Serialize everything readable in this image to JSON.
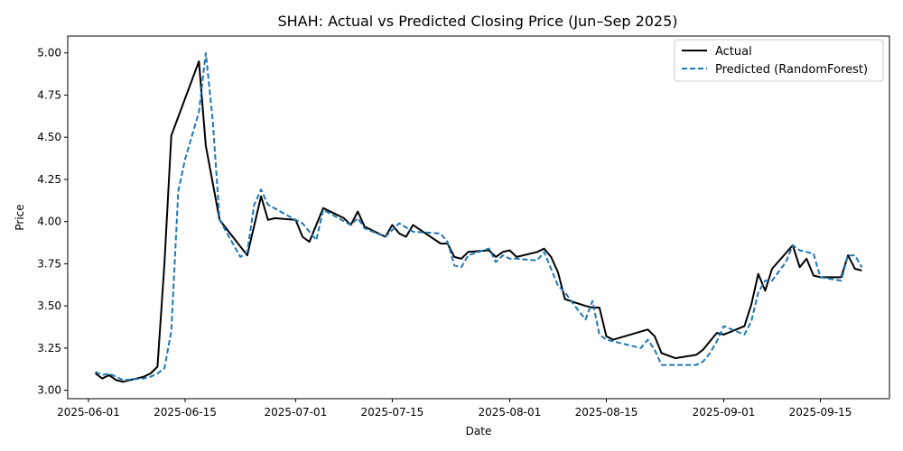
{
  "chart_data": {
    "type": "line",
    "title": "SHAH: Actual vs Predicted Closing Price (Jun–Sep 2025)",
    "xlabel": "Date",
    "ylabel": "Price",
    "xlim": [
      "2025-05-29",
      "2025-09-25"
    ],
    "ylim": [
      2.95,
      5.1
    ],
    "x_ticks": [
      "2025-06-01",
      "2025-06-15",
      "2025-07-01",
      "2025-07-15",
      "2025-08-01",
      "2025-08-15",
      "2025-09-01",
      "2025-09-15"
    ],
    "y_ticks": [
      "3.00",
      "3.25",
      "3.50",
      "3.75",
      "4.00",
      "4.25",
      "4.50",
      "4.75",
      "5.00"
    ],
    "legend_position": "top-right",
    "grid": false,
    "series": [
      {
        "name": "Actual",
        "color": "#000000",
        "style": "solid",
        "points": [
          [
            "2025-06-02",
            3.1
          ],
          [
            "2025-06-03",
            3.07
          ],
          [
            "2025-06-04",
            3.09
          ],
          [
            "2025-06-05",
            3.06
          ],
          [
            "2025-06-06",
            3.05
          ],
          [
            "2025-06-09",
            3.08
          ],
          [
            "2025-06-10",
            3.1
          ],
          [
            "2025-06-11",
            3.14
          ],
          [
            "2025-06-12",
            3.75
          ],
          [
            "2025-06-13",
            4.51
          ],
          [
            "2025-06-17",
            4.95
          ],
          [
            "2025-06-18",
            4.45
          ],
          [
            "2025-06-20",
            4.01
          ],
          [
            "2025-06-24",
            3.8
          ],
          [
            "2025-06-26",
            4.15
          ],
          [
            "2025-06-27",
            4.01
          ],
          [
            "2025-06-28",
            4.02
          ],
          [
            "2025-07-01",
            4.01
          ],
          [
            "2025-07-02",
            3.91
          ],
          [
            "2025-07-03",
            3.88
          ],
          [
            "2025-07-05",
            4.08
          ],
          [
            "2025-07-08",
            4.02
          ],
          [
            "2025-07-09",
            3.98
          ],
          [
            "2025-07-10",
            4.06
          ],
          [
            "2025-07-11",
            3.97
          ],
          [
            "2025-07-14",
            3.91
          ],
          [
            "2025-07-15",
            3.98
          ],
          [
            "2025-07-16",
            3.93
          ],
          [
            "2025-07-17",
            3.91
          ],
          [
            "2025-07-18",
            3.98
          ],
          [
            "2025-07-22",
            3.87
          ],
          [
            "2025-07-23",
            3.87
          ],
          [
            "2025-07-24",
            3.79
          ],
          [
            "2025-07-25",
            3.78
          ],
          [
            "2025-07-26",
            3.82
          ],
          [
            "2025-07-29",
            3.83
          ],
          [
            "2025-07-30",
            3.79
          ],
          [
            "2025-07-31",
            3.82
          ],
          [
            "2025-08-01",
            3.83
          ],
          [
            "2025-08-02",
            3.79
          ],
          [
            "2025-08-05",
            3.82
          ],
          [
            "2025-08-06",
            3.84
          ],
          [
            "2025-08-07",
            3.79
          ],
          [
            "2025-08-08",
            3.7
          ],
          [
            "2025-08-09",
            3.54
          ],
          [
            "2025-08-12",
            3.5
          ],
          [
            "2025-08-13",
            3.49
          ],
          [
            "2025-08-14",
            3.49
          ],
          [
            "2025-08-15",
            3.32
          ],
          [
            "2025-08-16",
            3.3
          ],
          [
            "2025-08-21",
            3.36
          ],
          [
            "2025-08-22",
            3.32
          ],
          [
            "2025-08-23",
            3.22
          ],
          [
            "2025-08-25",
            3.19
          ],
          [
            "2025-08-28",
            3.21
          ],
          [
            "2025-08-29",
            3.24
          ],
          [
            "2025-08-30",
            3.29
          ],
          [
            "2025-08-31",
            3.34
          ],
          [
            "2025-09-01",
            3.33
          ],
          [
            "2025-09-04",
            3.38
          ],
          [
            "2025-09-05",
            3.51
          ],
          [
            "2025-09-06",
            3.69
          ],
          [
            "2025-09-07",
            3.59
          ],
          [
            "2025-09-08",
            3.72
          ],
          [
            "2025-09-11",
            3.86
          ],
          [
            "2025-09-12",
            3.73
          ],
          [
            "2025-09-13",
            3.78
          ],
          [
            "2025-09-14",
            3.68
          ],
          [
            "2025-09-15",
            3.67
          ],
          [
            "2025-09-18",
            3.67
          ],
          [
            "2025-09-19",
            3.8
          ],
          [
            "2025-09-20",
            3.72
          ],
          [
            "2025-09-21",
            3.71
          ]
        ]
      },
      {
        "name": "Predicted (RandomForest)",
        "color": "#1f77b4",
        "style": "dashed",
        "points": [
          [
            "2025-06-02",
            3.11
          ],
          [
            "2025-06-03",
            3.09
          ],
          [
            "2025-06-04",
            3.1
          ],
          [
            "2025-06-05",
            3.08
          ],
          [
            "2025-06-06",
            3.06
          ],
          [
            "2025-06-09",
            3.07
          ],
          [
            "2025-06-10",
            3.08
          ],
          [
            "2025-06-11",
            3.1
          ],
          [
            "2025-06-12",
            3.13
          ],
          [
            "2025-06-13",
            3.35
          ],
          [
            "2025-06-14",
            4.18
          ],
          [
            "2025-06-15",
            4.37
          ],
          [
            "2025-06-17",
            4.65
          ],
          [
            "2025-06-18",
            5.0
          ],
          [
            "2025-06-19",
            4.6
          ],
          [
            "2025-06-20",
            4.01
          ],
          [
            "2025-06-23",
            3.79
          ],
          [
            "2025-06-24",
            3.82
          ],
          [
            "2025-06-25",
            4.1
          ],
          [
            "2025-06-26",
            4.19
          ],
          [
            "2025-06-27",
            4.1
          ],
          [
            "2025-07-01",
            4.01
          ],
          [
            "2025-07-02",
            3.99
          ],
          [
            "2025-07-03",
            3.94
          ],
          [
            "2025-07-04",
            3.89
          ],
          [
            "2025-07-05",
            4.07
          ],
          [
            "2025-07-09",
            3.98
          ],
          [
            "2025-07-10",
            4.02
          ],
          [
            "2025-07-11",
            3.96
          ],
          [
            "2025-07-14",
            3.91
          ],
          [
            "2025-07-15",
            3.95
          ],
          [
            "2025-07-16",
            3.99
          ],
          [
            "2025-07-18",
            3.94
          ],
          [
            "2025-07-22",
            3.93
          ],
          [
            "2025-07-23",
            3.88
          ],
          [
            "2025-07-24",
            3.74
          ],
          [
            "2025-07-25",
            3.73
          ],
          [
            "2025-07-26",
            3.8
          ],
          [
            "2025-07-29",
            3.84
          ],
          [
            "2025-07-30",
            3.76
          ],
          [
            "2025-07-31",
            3.8
          ],
          [
            "2025-08-01",
            3.78
          ],
          [
            "2025-08-02",
            3.78
          ],
          [
            "2025-08-05",
            3.77
          ],
          [
            "2025-08-06",
            3.82
          ],
          [
            "2025-08-08",
            3.62
          ],
          [
            "2025-08-09",
            3.58
          ],
          [
            "2025-08-11",
            3.47
          ],
          [
            "2025-08-12",
            3.42
          ],
          [
            "2025-08-13",
            3.53
          ],
          [
            "2025-08-14",
            3.33
          ],
          [
            "2025-08-15",
            3.3
          ],
          [
            "2025-08-17",
            3.28
          ],
          [
            "2025-08-20",
            3.25
          ],
          [
            "2025-08-21",
            3.3
          ],
          [
            "2025-08-22",
            3.24
          ],
          [
            "2025-08-23",
            3.15
          ],
          [
            "2025-08-28",
            3.15
          ],
          [
            "2025-08-29",
            3.17
          ],
          [
            "2025-08-30",
            3.22
          ],
          [
            "2025-08-31",
            3.29
          ],
          [
            "2025-09-01",
            3.38
          ],
          [
            "2025-09-04",
            3.33
          ],
          [
            "2025-09-05",
            3.41
          ],
          [
            "2025-09-06",
            3.58
          ],
          [
            "2025-09-07",
            3.65
          ],
          [
            "2025-09-08",
            3.65
          ],
          [
            "2025-09-10",
            3.76
          ],
          [
            "2025-09-11",
            3.86
          ],
          [
            "2025-09-12",
            3.83
          ],
          [
            "2025-09-14",
            3.81
          ],
          [
            "2025-09-15",
            3.67
          ],
          [
            "2025-09-18",
            3.65
          ],
          [
            "2025-09-19",
            3.8
          ],
          [
            "2025-09-20",
            3.8
          ],
          [
            "2025-09-21",
            3.73
          ]
        ]
      }
    ]
  }
}
